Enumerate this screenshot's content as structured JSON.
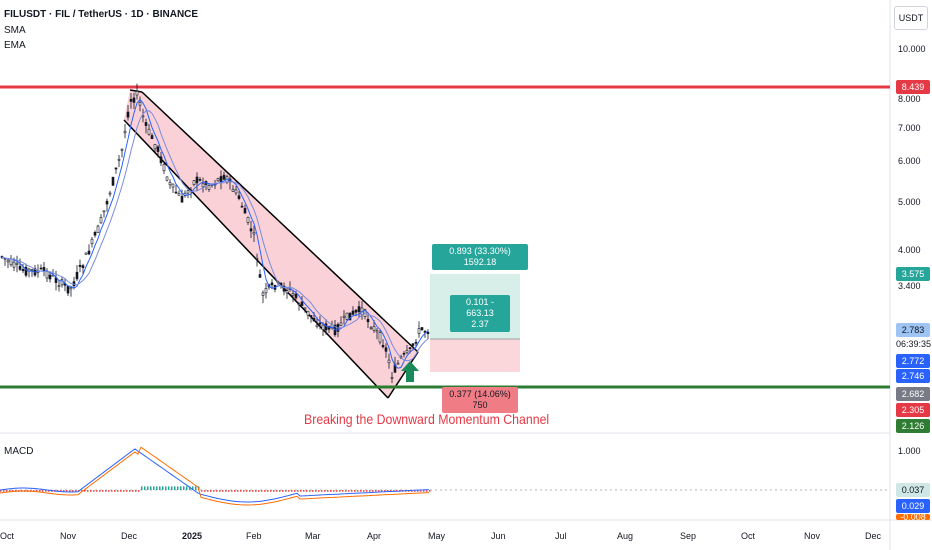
{
  "header": {
    "symbol_title": "FILUSDT · FIL / TetherUS · 1D · BINANCE",
    "indicator_1": "SMA",
    "indicator_2": "EMA"
  },
  "currency": "USDT",
  "price_axis_labels": [
    "10.000",
    "8.000",
    "7.000",
    "6.000",
    "5.000",
    "4.000",
    "3.400"
  ],
  "price_tags": {
    "resistance": "8.439",
    "target": "3.575",
    "last_price": "2.783",
    "countdown": "06:39:35",
    "sma_value": "2.772",
    "ema_value": "2.746",
    "level_a": "2.682",
    "stop": "2.305",
    "support": "2.126"
  },
  "callouts": {
    "target_label": "0.893 (33.30%) 1592.18",
    "middle_line_1": "0.101 - 663.13",
    "middle_line_2": "2.37",
    "stop_label": "0.377 (14.06%) 750"
  },
  "annotation": "Breaking the Downward Momentum Channel",
  "macd": {
    "label": "MACD",
    "scale_label": "1.000",
    "tag_1": "0.037",
    "tag_2": "0.029",
    "tag_3": "-0.008"
  },
  "months": [
    "Oct",
    "Nov",
    "Dec",
    "2025",
    "Feb",
    "Mar",
    "Apr",
    "May",
    "Jun",
    "Jul",
    "Aug",
    "Sep",
    "Oct",
    "Nov",
    "Dec"
  ],
  "colors": {
    "resistance": "#e53946",
    "support": "#2e7d32",
    "channel_fill": "#f8c9cf",
    "target_zone": "#d7efe8",
    "stop_zone": "#fbd6da",
    "teal": "#26a69a",
    "blue": "#2962ff",
    "sma": "#2962ff",
    "ema": "#7b8cdb",
    "macd_line": "#2962ff",
    "signal_line": "#ff6d00"
  }
}
